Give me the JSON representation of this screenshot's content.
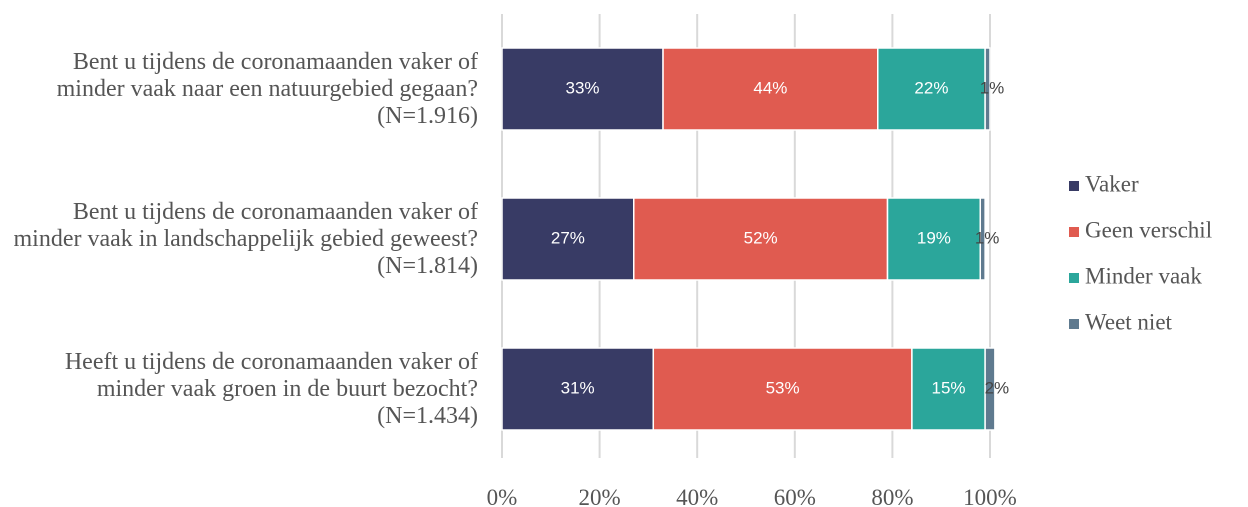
{
  "chart_data": {
    "type": "stacked-bar-horizontal",
    "categories": [
      "Bent u tijdens de coronamaanden vaker of minder vaak naar een natuurgebied gegaan? (N=1.916)",
      "Bent u tijdens de coronamaanden vaker of minder vaak in landschappelijk gebied geweest? (N=1.814)",
      "Heeft u tijdens de coronamaanden vaker of minder vaak groen in de buurt bezocht? (N=1.434)"
    ],
    "series": [
      {
        "name": "Vaker",
        "color": "#383b65",
        "values": [
          33,
          27,
          31
        ],
        "value_labels": [
          "33%",
          "27%",
          "31%"
        ]
      },
      {
        "name": "Geen verschil",
        "color": "#e05b50",
        "values": [
          44,
          52,
          53
        ],
        "value_labels": [
          "44%",
          "52%",
          "53%"
        ]
      },
      {
        "name": "Minder vaak",
        "color": "#2ba69b",
        "values": [
          22,
          19,
          15
        ],
        "value_labels": [
          "22%",
          "19%",
          "15%"
        ]
      },
      {
        "name": "Weet niet",
        "color": "#5f7a8f",
        "values": [
          1,
          1,
          2
        ],
        "value_labels": [
          "1%",
          "1%",
          "2%"
        ]
      }
    ],
    "xlim": [
      0,
      100
    ],
    "xticks": [
      {
        "value": 0,
        "label": "0%"
      },
      {
        "value": 20,
        "label": "20%"
      },
      {
        "value": 40,
        "label": "40%"
      },
      {
        "value": 60,
        "label": "60%"
      },
      {
        "value": 80,
        "label": "80%"
      },
      {
        "value": 100,
        "label": "100%"
      }
    ],
    "grid": true,
    "legend": "right"
  }
}
